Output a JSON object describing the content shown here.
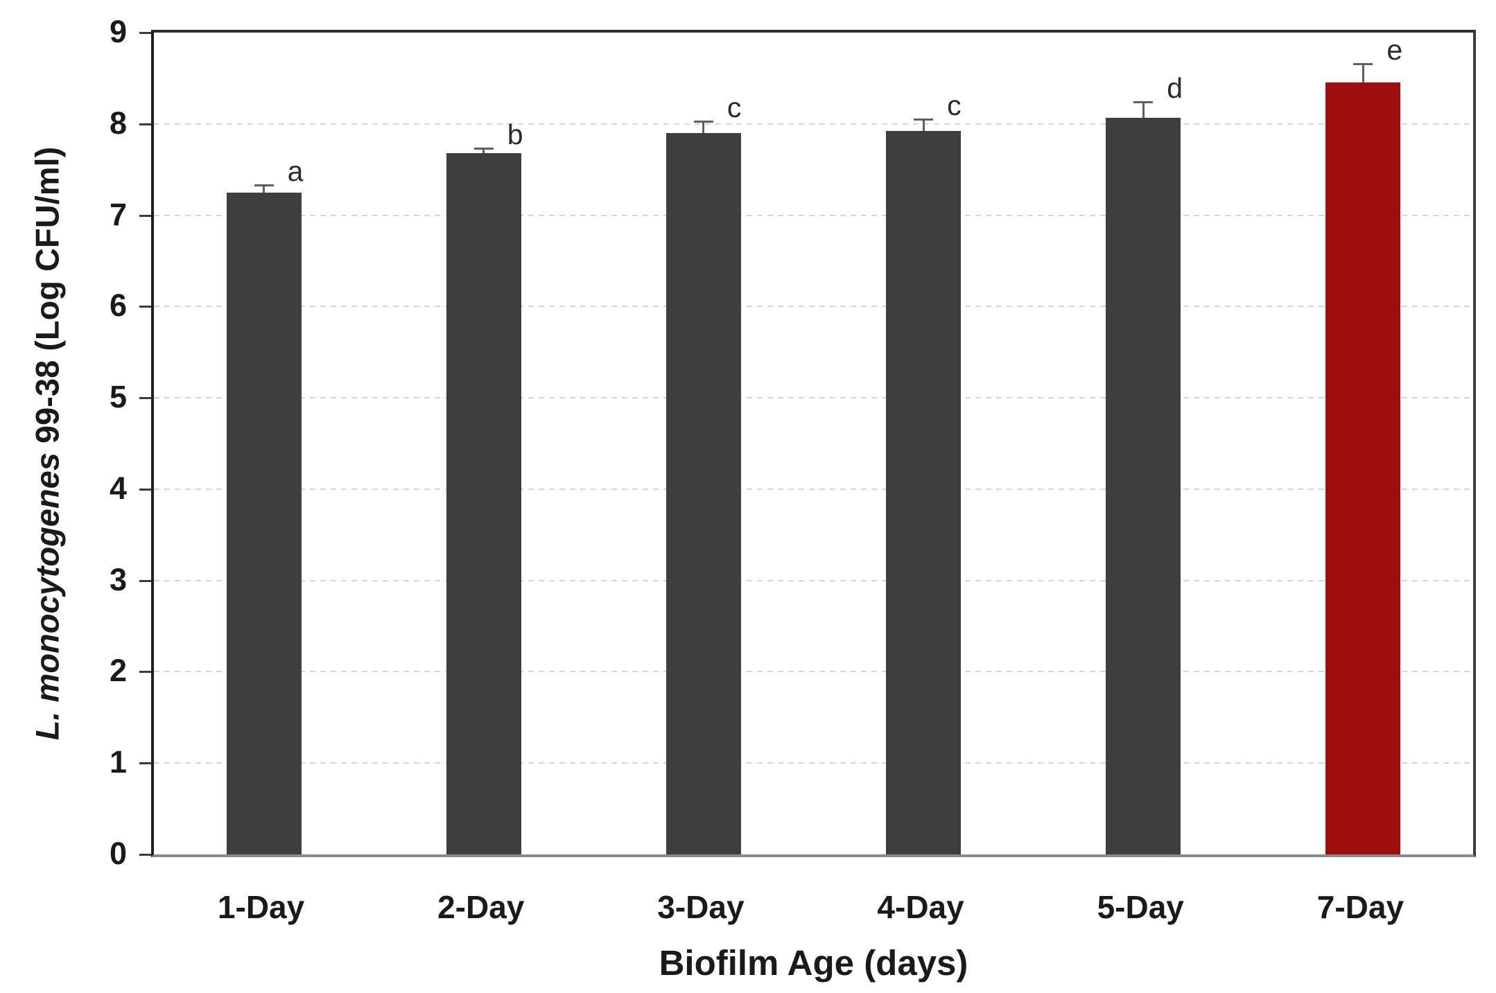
{
  "chart_data": {
    "type": "bar",
    "title": "",
    "xlabel": "Biofilm Age (days)",
    "ylabel": "L. monocytogenes 99-38 (Log CFU/ml)",
    "ylabel_italic_part": "L. monocytogenes",
    "ylabel_plain_part": " 99-38 (Log CFU/ml)",
    "categories": [
      "1-Day",
      "2-Day",
      "3-Day",
      "4-Day",
      "5-Day",
      "7-Day"
    ],
    "values": [
      7.25,
      7.68,
      7.9,
      7.92,
      8.07,
      8.45
    ],
    "errors_upper": [
      0.08,
      0.05,
      0.13,
      0.13,
      0.17,
      0.21
    ],
    "sig_letters": [
      "a",
      "b",
      "c",
      "c",
      "d",
      "e"
    ],
    "bar_colors": [
      "#3e3e3e",
      "#3e3e3e",
      "#3e3e3e",
      "#3e3e3e",
      "#3e3e3e",
      "#9e0e0c"
    ],
    "ylim": [
      0,
      9
    ],
    "yticks": [
      "0",
      "1",
      "2",
      "3",
      "4",
      "5",
      "6",
      "7",
      "8",
      "9"
    ],
    "grid": "horizontal dashed lines at each integer, light gray",
    "legend": "none",
    "error_bar_direction": "upper only",
    "colors": {
      "bar_default": "#3e3e3e",
      "bar_highlight": "#9e0e0c",
      "gridline": "#d6d6d6",
      "axis_box": "#2e2e2e",
      "baseline": "#8a8a8a",
      "text": "#1a1a1a"
    }
  }
}
